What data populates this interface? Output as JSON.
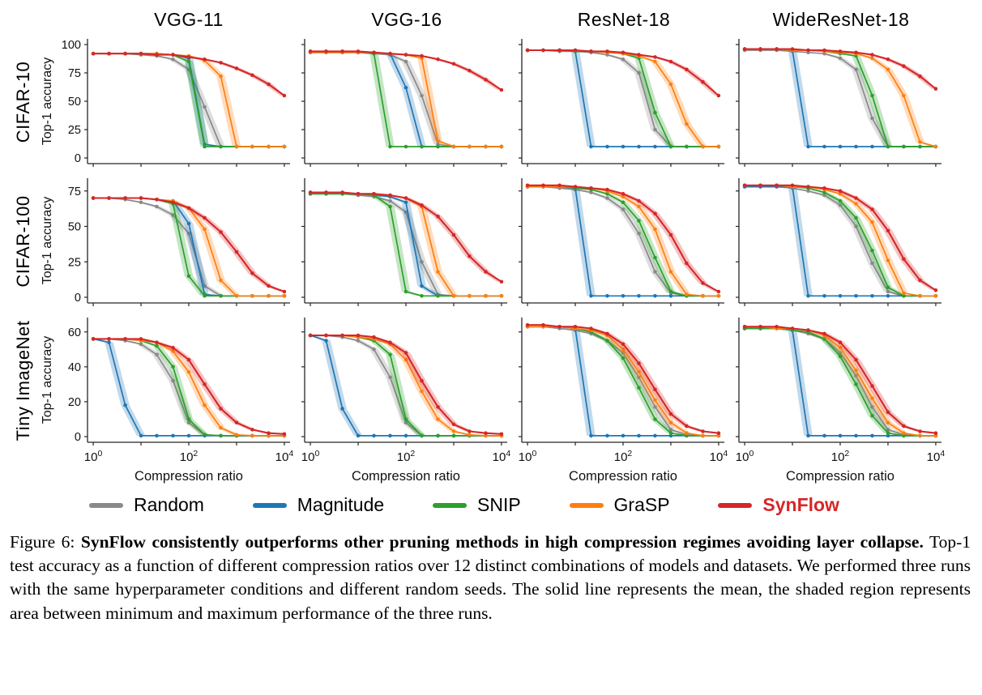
{
  "caption": {
    "prefix": "Figure 6: ",
    "bold": "SynFlow consistently outperforms other pruning methods in high compression regimes avoiding layer collapse.",
    "rest": " Top-1 test accuracy as a function of different compression ratios over 12 distinct combinations of models and datasets. We performed three runs with the same hyperparameter conditions and different random seeds. The solid line represents the mean, the shaded region represents area between minimum and maximum performance of the three runs."
  },
  "chart_data": {
    "type": "line",
    "grid_shape": "3 rows (datasets) x 4 columns (models)",
    "cols": [
      "VGG-11",
      "VGG-16",
      "ResNet-18",
      "WideResNet-18"
    ],
    "rows": [
      {
        "dataset": "CIFAR-10",
        "ylabel": "Top-1 accuracy",
        "ylim": [
          0,
          100
        ],
        "yticks": [
          0,
          25,
          50,
          75,
          100
        ]
      },
      {
        "dataset": "CIFAR-100",
        "ylabel": "Top-1 accuracy",
        "ylim": [
          0,
          80
        ],
        "yticks": [
          0,
          25,
          50,
          75
        ]
      },
      {
        "dataset": "Tiny ImageNet",
        "ylabel": "Top-1 accuracy",
        "ylim": [
          0,
          65
        ],
        "yticks": [
          0,
          20,
          40,
          60
        ]
      }
    ],
    "x_axis": {
      "label": "Compression ratio",
      "scale": "log",
      "range": [
        1,
        10000
      ],
      "ticks": [
        "10^0",
        "10^2",
        "10^4"
      ],
      "tick_exponents": [
        0,
        2,
        4
      ]
    },
    "x_exponents": [
      0,
      0.33,
      0.67,
      1,
      1.33,
      1.67,
      2,
      2.33,
      2.67,
      3,
      3.33,
      3.67,
      4
    ],
    "series_meta": [
      {
        "name": "Random",
        "color": "#8a8a8a"
      },
      {
        "name": "Magnitude",
        "color": "#1f77b4"
      },
      {
        "name": "SNIP",
        "color": "#2ca02c"
      },
      {
        "name": "GraSP",
        "color": "#ff7f0e"
      },
      {
        "name": "SynFlow",
        "color": "#d62728"
      }
    ],
    "shaded_region_meaning": "area between minimum and maximum performance of the three runs",
    "subplots": [
      {
        "row": 0,
        "col": 0,
        "series": {
          "Random": [
            92,
            92,
            92,
            91,
            90,
            87,
            78,
            45,
            10,
            10,
            10,
            10,
            10
          ],
          "Magnitude": [
            92,
            92,
            92,
            92,
            92,
            91,
            88,
            12,
            10,
            10,
            10,
            10,
            10
          ],
          "SNIP": [
            92,
            92,
            92,
            92,
            92,
            91,
            85,
            10,
            10,
            10,
            10,
            10,
            10
          ],
          "GraSP": [
            92,
            92,
            92,
            92,
            92,
            91,
            90,
            86,
            72,
            10,
            10,
            10,
            10
          ],
          "SynFlow": [
            92,
            92,
            92,
            92,
            91,
            91,
            89,
            87,
            84,
            79,
            73,
            65,
            55
          ]
        }
      },
      {
        "row": 0,
        "col": 1,
        "series": {
          "Random": [
            93,
            93,
            93,
            93,
            92,
            91,
            85,
            55,
            12,
            10,
            10,
            10,
            10
          ],
          "Magnitude": [
            93,
            93,
            93,
            93,
            93,
            92,
            62,
            10,
            10,
            10,
            10,
            10,
            10
          ],
          "SNIP": [
            94,
            94,
            94,
            93,
            92,
            10,
            10,
            10,
            10,
            10,
            10,
            10,
            10
          ],
          "GraSP": [
            93,
            93,
            93,
            93,
            93,
            92,
            91,
            88,
            15,
            10,
            10,
            10,
            10
          ],
          "SynFlow": [
            94,
            94,
            94,
            94,
            93,
            92,
            91,
            90,
            87,
            83,
            77,
            69,
            60
          ]
        }
      },
      {
        "row": 0,
        "col": 2,
        "series": {
          "Random": [
            95,
            95,
            94,
            94,
            93,
            91,
            87,
            75,
            25,
            10,
            10,
            10,
            10
          ],
          "Magnitude": [
            95,
            95,
            95,
            94,
            10,
            10,
            10,
            10,
            10,
            10,
            10,
            10,
            10
          ],
          "SNIP": [
            95,
            95,
            95,
            94,
            94,
            93,
            92,
            88,
            40,
            10,
            10,
            10,
            10
          ],
          "GraSP": [
            95,
            95,
            95,
            95,
            94,
            93,
            92,
            90,
            85,
            65,
            30,
            10,
            10
          ],
          "SynFlow": [
            95,
            95,
            95,
            95,
            94,
            94,
            93,
            91,
            89,
            85,
            78,
            67,
            55
          ]
        }
      },
      {
        "row": 0,
        "col": 3,
        "series": {
          "Random": [
            95,
            95,
            95,
            94,
            93,
            92,
            88,
            78,
            35,
            10,
            10,
            10,
            10
          ],
          "Magnitude": [
            96,
            96,
            96,
            95,
            10,
            10,
            10,
            10,
            10,
            10,
            10,
            10,
            10
          ],
          "SNIP": [
            96,
            96,
            96,
            95,
            95,
            94,
            92,
            90,
            55,
            10,
            10,
            10,
            10
          ],
          "GraSP": [
            96,
            96,
            96,
            95,
            95,
            94,
            93,
            92,
            88,
            78,
            55,
            14,
            10
          ],
          "SynFlow": [
            96,
            96,
            96,
            96,
            95,
            95,
            94,
            93,
            91,
            87,
            81,
            72,
            61
          ]
        }
      },
      {
        "row": 1,
        "col": 0,
        "series": {
          "Random": [
            70,
            70,
            69,
            67,
            64,
            58,
            45,
            8,
            1,
            1,
            1,
            1,
            1
          ],
          "Magnitude": [
            70,
            70,
            70,
            70,
            69,
            68,
            52,
            2,
            1,
            1,
            1,
            1,
            1
          ],
          "SNIP": [
            70,
            70,
            70,
            70,
            69,
            66,
            15,
            1,
            1,
            1,
            1,
            1,
            1
          ],
          "GraSP": [
            70,
            70,
            70,
            70,
            69,
            68,
            63,
            48,
            12,
            1,
            1,
            1,
            1
          ],
          "SynFlow": [
            70,
            70,
            70,
            70,
            69,
            67,
            63,
            56,
            46,
            32,
            17,
            8,
            4
          ]
        }
      },
      {
        "row": 1,
        "col": 1,
        "series": {
          "Random": [
            73,
            73,
            73,
            72,
            71,
            68,
            60,
            25,
            2,
            1,
            1,
            1,
            1
          ],
          "Magnitude": [
            73,
            73,
            73,
            73,
            72,
            71,
            67,
            8,
            1,
            1,
            1,
            1,
            1
          ],
          "SNIP": [
            73,
            73,
            73,
            73,
            72,
            64,
            4,
            1,
            1,
            1,
            1,
            1,
            1
          ],
          "GraSP": [
            74,
            74,
            74,
            73,
            73,
            72,
            70,
            64,
            18,
            1,
            1,
            1,
            1
          ],
          "SynFlow": [
            74,
            74,
            74,
            73,
            73,
            72,
            70,
            65,
            57,
            44,
            29,
            18,
            11
          ]
        }
      },
      {
        "row": 1,
        "col": 2,
        "series": {
          "Random": [
            78,
            78,
            77,
            76,
            74,
            70,
            62,
            45,
            18,
            3,
            1,
            1,
            1
          ],
          "Magnitude": [
            78,
            78,
            78,
            77,
            1,
            1,
            1,
            1,
            1,
            1,
            1,
            1,
            1
          ],
          "SNIP": [
            78,
            78,
            78,
            77,
            76,
            73,
            67,
            54,
            28,
            4,
            1,
            1,
            1
          ],
          "GraSP": [
            78,
            78,
            78,
            78,
            77,
            75,
            71,
            64,
            48,
            18,
            2,
            1,
            1
          ],
          "SynFlow": [
            79,
            79,
            79,
            78,
            77,
            76,
            73,
            68,
            59,
            44,
            24,
            10,
            4
          ]
        }
      },
      {
        "row": 1,
        "col": 3,
        "series": {
          "Random": [
            78,
            78,
            78,
            77,
            75,
            72,
            65,
            50,
            24,
            4,
            1,
            1,
            1
          ],
          "Magnitude": [
            78,
            78,
            78,
            78,
            1,
            1,
            1,
            1,
            1,
            1,
            1,
            1,
            1
          ],
          "SNIP": [
            79,
            79,
            79,
            78,
            77,
            74,
            68,
            56,
            33,
            7,
            1,
            1,
            1
          ],
          "GraSP": [
            79,
            79,
            79,
            78,
            78,
            76,
            73,
            66,
            53,
            26,
            3,
            1,
            1
          ],
          "SynFlow": [
            79,
            79,
            79,
            79,
            78,
            77,
            75,
            70,
            62,
            47,
            27,
            12,
            5
          ]
        }
      },
      {
        "row": 2,
        "col": 0,
        "series": {
          "Random": [
            56,
            56,
            55,
            53,
            47,
            32,
            8,
            1,
            0.5,
            0.5,
            0.5,
            0.5,
            0.5
          ],
          "Magnitude": [
            56,
            54,
            18,
            0.5,
            0.5,
            0.5,
            0.5,
            0.5,
            0.5,
            0.5,
            0.5,
            0.5,
            0.5
          ],
          "SNIP": [
            56,
            56,
            56,
            55,
            52,
            40,
            10,
            1,
            0.5,
            0.5,
            0.5,
            0.5,
            0.5
          ],
          "GraSP": [
            56,
            56,
            56,
            55,
            54,
            49,
            37,
            18,
            5,
            1,
            0.5,
            0.5,
            0.5
          ],
          "SynFlow": [
            56,
            56,
            56,
            56,
            54,
            51,
            44,
            30,
            16,
            8,
            4,
            2,
            1.5
          ]
        }
      },
      {
        "row": 2,
        "col": 1,
        "series": {
          "Random": [
            58,
            58,
            57,
            55,
            50,
            34,
            8,
            0.5,
            0.5,
            0.5,
            0.5,
            0.5,
            0.5
          ],
          "Magnitude": [
            58,
            55,
            16,
            0.5,
            0.5,
            0.5,
            0.5,
            0.5,
            0.5,
            0.5,
            0.5,
            0.5,
            0.5
          ],
          "SNIP": [
            58,
            58,
            58,
            57,
            55,
            47,
            10,
            0.5,
            0.5,
            0.5,
            0.5,
            0.5,
            0.5
          ],
          "GraSP": [
            58,
            58,
            58,
            57,
            56,
            53,
            44,
            26,
            10,
            3,
            1,
            0.5,
            0.5
          ],
          "SynFlow": [
            58,
            58,
            58,
            58,
            57,
            54,
            48,
            32,
            17,
            7,
            3,
            2,
            1.5
          ]
        }
      },
      {
        "row": 2,
        "col": 2,
        "series": {
          "Random": [
            63,
            63,
            62,
            61,
            59,
            55,
            48,
            34,
            17,
            4,
            1,
            0.5,
            0.5
          ],
          "Magnitude": [
            63,
            63,
            63,
            62,
            0.5,
            0.5,
            0.5,
            0.5,
            0.5,
            0.5,
            0.5,
            0.5,
            0.5
          ],
          "SNIP": [
            63,
            63,
            63,
            62,
            60,
            55,
            45,
            28,
            10,
            2,
            0.5,
            0.5,
            0.5
          ],
          "GraSP": [
            63,
            63,
            63,
            62,
            61,
            58,
            50,
            37,
            21,
            8,
            2,
            0.5,
            0.5
          ],
          "SynFlow": [
            64,
            64,
            63,
            63,
            62,
            59,
            53,
            42,
            27,
            13,
            6,
            3,
            2
          ]
        }
      },
      {
        "row": 2,
        "col": 3,
        "series": {
          "Random": [
            62,
            62,
            62,
            61,
            59,
            56,
            48,
            35,
            17,
            4,
            1,
            0.5,
            0.5
          ],
          "Magnitude": [
            62,
            62,
            62,
            61,
            0.5,
            0.5,
            0.5,
            0.5,
            0.5,
            0.5,
            0.5,
            0.5,
            0.5
          ],
          "SNIP": [
            62,
            62,
            62,
            61,
            60,
            56,
            46,
            30,
            12,
            2,
            0.5,
            0.5,
            0.5
          ],
          "GraSP": [
            63,
            63,
            62,
            62,
            61,
            58,
            51,
            38,
            22,
            8,
            2,
            0.5,
            0.5
          ],
          "SynFlow": [
            63,
            63,
            63,
            62,
            61,
            59,
            54,
            44,
            29,
            14,
            6,
            3,
            2
          ]
        }
      }
    ]
  }
}
